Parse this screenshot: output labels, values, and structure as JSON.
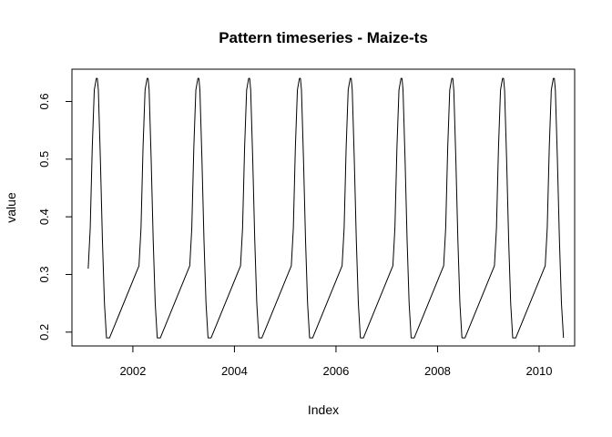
{
  "chart_data": {
    "type": "line",
    "title": "Pattern timeseries - Maize-ts",
    "xlabel": "Index",
    "ylabel": "value",
    "xlim": [
      2000.8,
      2010.7
    ],
    "ylim": [
      0.176,
      0.656
    ],
    "x_ticks": [
      2002,
      2004,
      2006,
      2008,
      2010
    ],
    "x_tick_labels": [
      "2002",
      "2004",
      "2006",
      "2008",
      "2010"
    ],
    "y_ticks": [
      0.2,
      0.3,
      0.4,
      0.5,
      0.6
    ],
    "y_tick_labels": [
      "0.2",
      "0.3",
      "0.4",
      "0.5",
      "0.6"
    ],
    "grid": false,
    "series": [
      {
        "color": "#000000",
        "cycle_starts": [
          2001.1,
          2002.1,
          2003.1,
          2004.1,
          2005.1,
          2006.1,
          2007.1,
          2008.1,
          2009.1,
          2010.1
        ],
        "x": [
          2001.12,
          2001.16,
          2001.2,
          2001.24,
          2001.28,
          2001.3,
          2001.32,
          2001.36,
          2001.4,
          2001.44,
          2001.48,
          2001.54,
          2002.12,
          2002.16,
          2002.2,
          2002.24,
          2002.28,
          2002.3,
          2002.32,
          2002.36,
          2002.4,
          2002.44,
          2002.48,
          2002.54,
          2003.12,
          2003.16,
          2003.2,
          2003.24,
          2003.28,
          2003.3,
          2003.32,
          2003.36,
          2003.4,
          2003.44,
          2003.48,
          2003.54,
          2004.12,
          2004.16,
          2004.2,
          2004.24,
          2004.28,
          2004.3,
          2004.32,
          2004.36,
          2004.4,
          2004.44,
          2004.48,
          2004.54,
          2005.12,
          2005.16,
          2005.2,
          2005.24,
          2005.28,
          2005.3,
          2005.32,
          2005.36,
          2005.4,
          2005.44,
          2005.48,
          2005.54,
          2006.12,
          2006.16,
          2006.2,
          2006.24,
          2006.28,
          2006.3,
          2006.32,
          2006.36,
          2006.4,
          2006.44,
          2006.48,
          2006.54,
          2007.12,
          2007.16,
          2007.2,
          2007.24,
          2007.28,
          2007.3,
          2007.32,
          2007.36,
          2007.4,
          2007.44,
          2007.48,
          2007.54,
          2008.12,
          2008.16,
          2008.2,
          2008.24,
          2008.28,
          2008.3,
          2008.32,
          2008.36,
          2008.4,
          2008.44,
          2008.48,
          2008.54,
          2009.12,
          2009.16,
          2009.2,
          2009.24,
          2009.28,
          2009.3,
          2009.32,
          2009.36,
          2009.4,
          2009.44,
          2009.48,
          2009.54,
          2010.12,
          2010.16,
          2010.2,
          2010.24,
          2010.28,
          2010.3,
          2010.32,
          2010.36,
          2010.4,
          2010.44,
          2010.48
        ],
        "values": [
          0.31,
          0.38,
          0.52,
          0.62,
          0.64,
          0.64,
          0.62,
          0.5,
          0.36,
          0.25,
          0.19,
          0.19,
          0.315,
          0.38,
          0.52,
          0.62,
          0.64,
          0.64,
          0.62,
          0.5,
          0.36,
          0.25,
          0.19,
          0.19,
          0.315,
          0.38,
          0.52,
          0.62,
          0.64,
          0.64,
          0.62,
          0.5,
          0.36,
          0.25,
          0.19,
          0.19,
          0.315,
          0.38,
          0.52,
          0.62,
          0.64,
          0.64,
          0.62,
          0.5,
          0.36,
          0.25,
          0.19,
          0.19,
          0.315,
          0.38,
          0.52,
          0.62,
          0.64,
          0.64,
          0.62,
          0.5,
          0.36,
          0.25,
          0.19,
          0.19,
          0.315,
          0.38,
          0.52,
          0.62,
          0.64,
          0.64,
          0.62,
          0.5,
          0.36,
          0.25,
          0.19,
          0.19,
          0.315,
          0.38,
          0.52,
          0.62,
          0.64,
          0.64,
          0.62,
          0.5,
          0.36,
          0.25,
          0.19,
          0.19,
          0.315,
          0.38,
          0.52,
          0.62,
          0.64,
          0.64,
          0.62,
          0.5,
          0.36,
          0.25,
          0.19,
          0.19,
          0.315,
          0.38,
          0.52,
          0.62,
          0.64,
          0.64,
          0.62,
          0.5,
          0.36,
          0.25,
          0.19,
          0.19,
          0.315,
          0.38,
          0.52,
          0.62,
          0.64,
          0.64,
          0.62,
          0.5,
          0.36,
          0.25,
          0.19
        ]
      }
    ]
  }
}
